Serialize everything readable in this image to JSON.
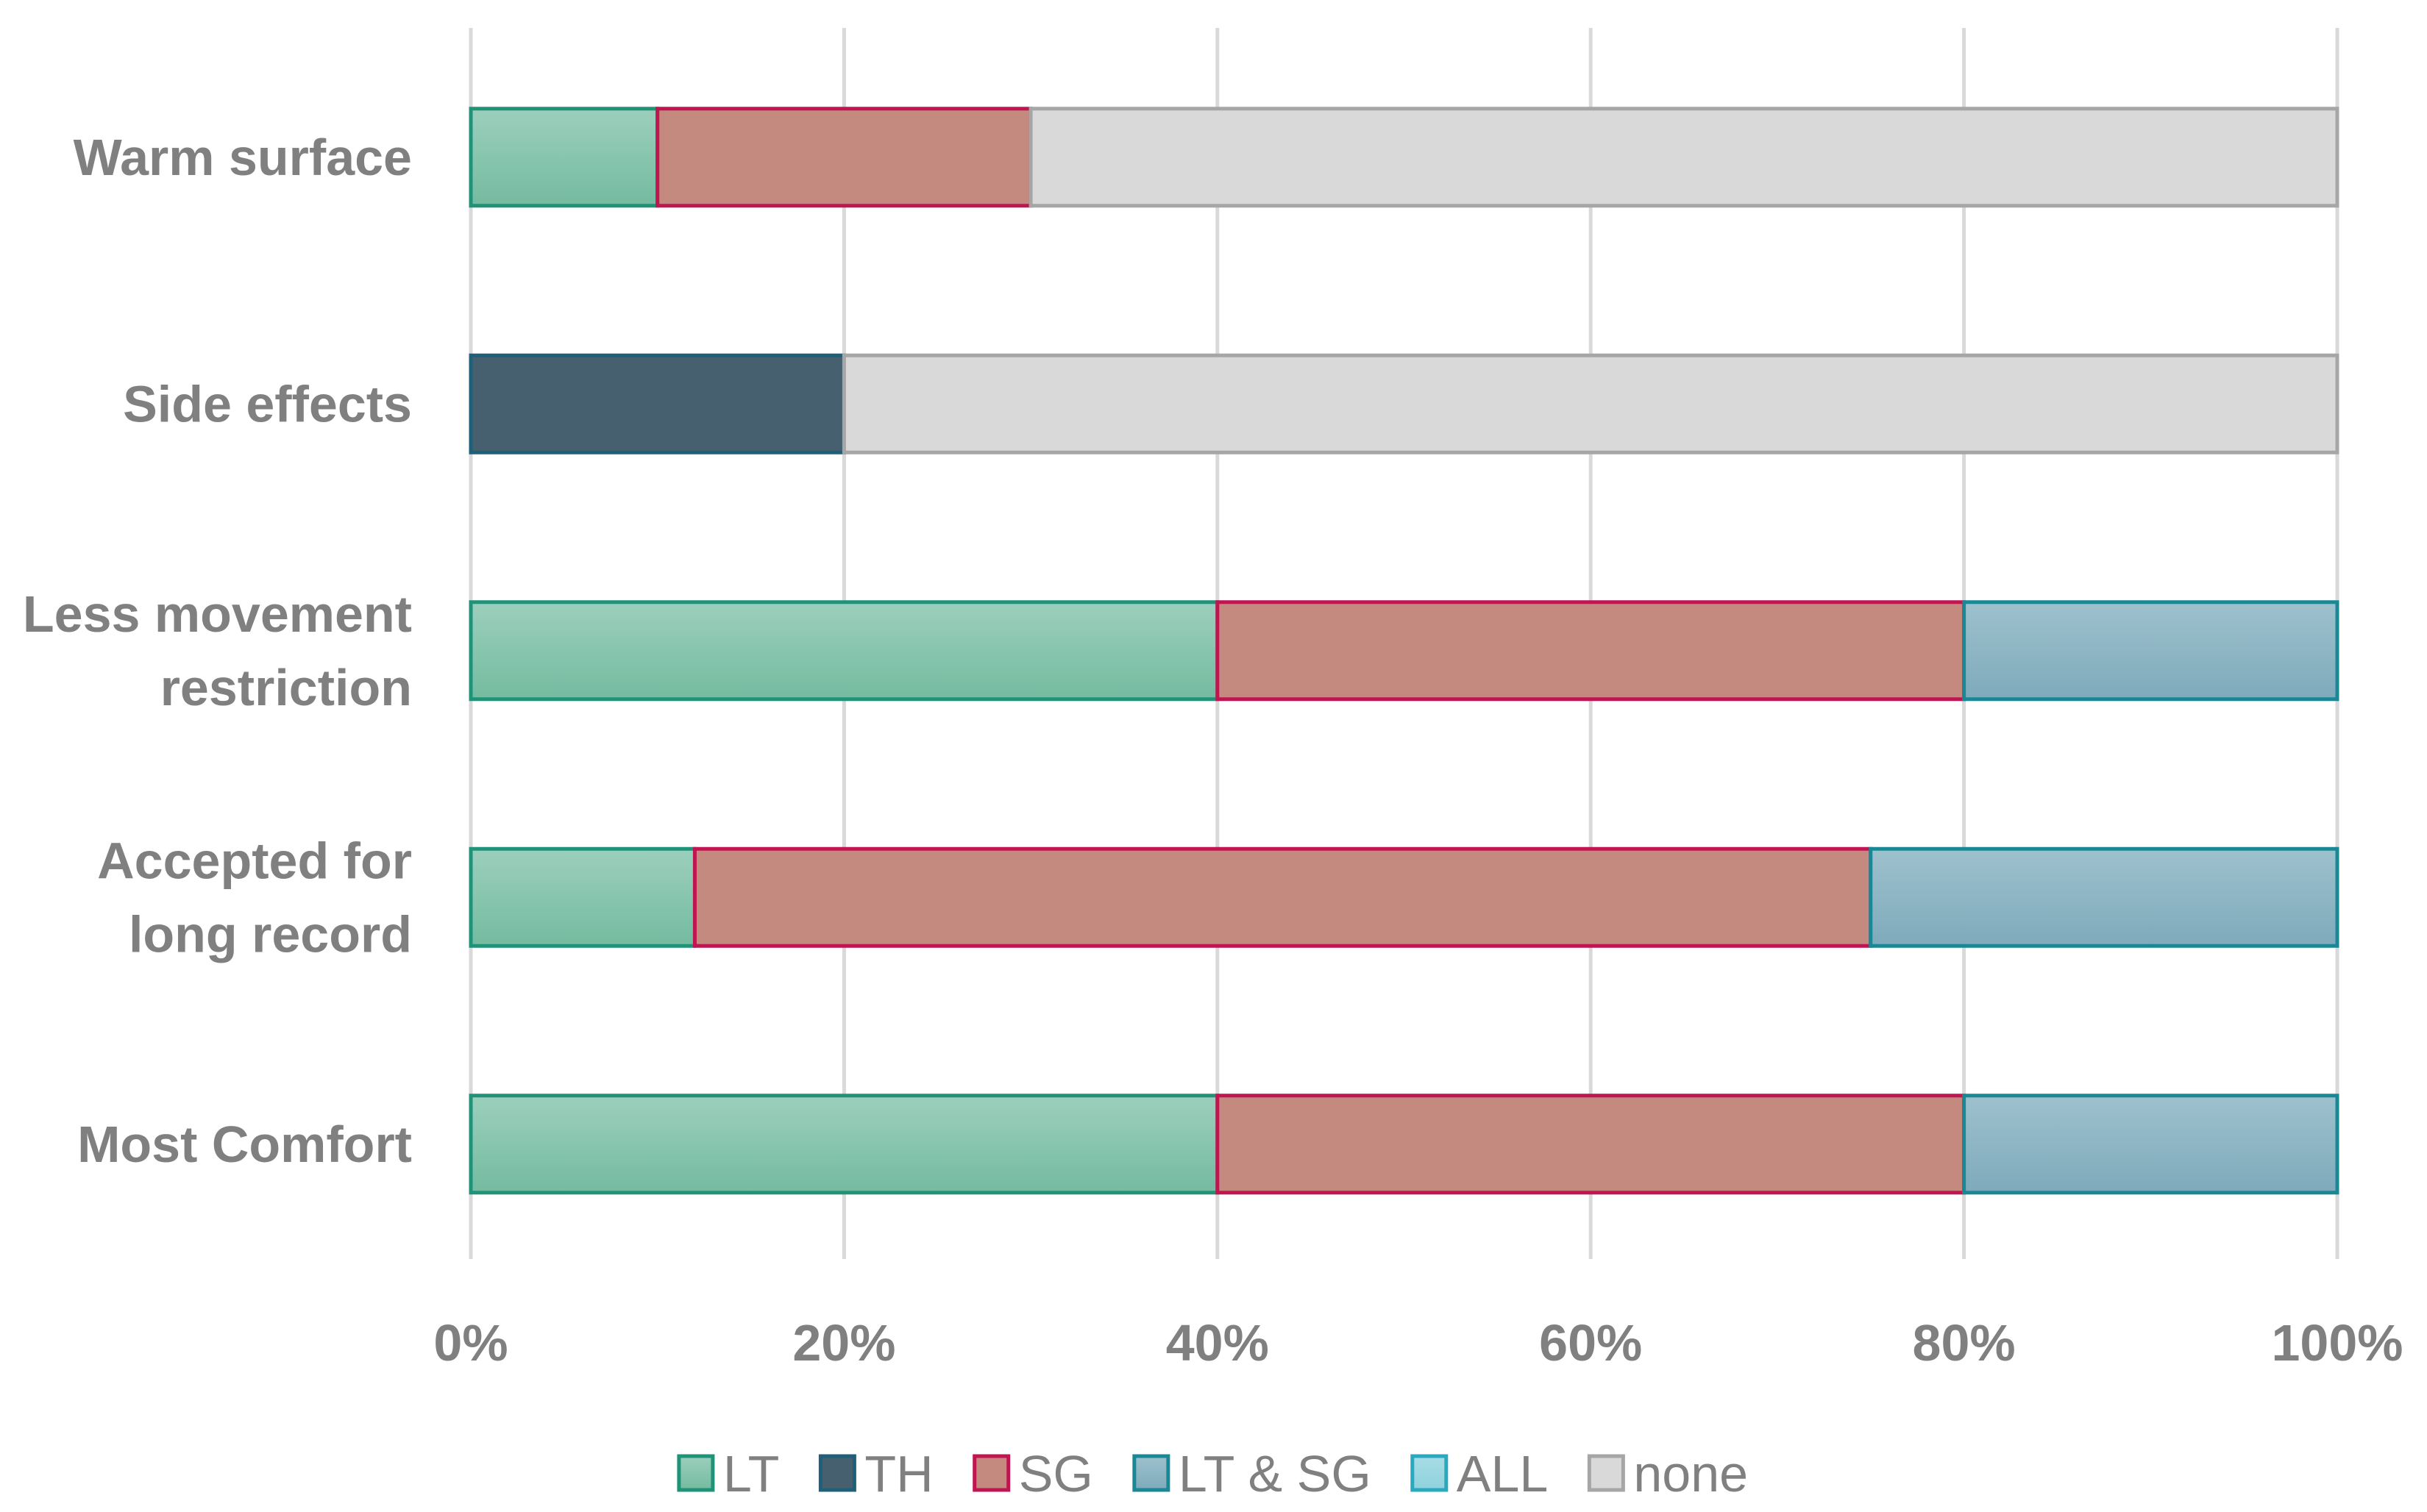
{
  "chart_data": {
    "type": "bar",
    "orientation": "horizontal",
    "stacked": "percent",
    "title": "",
    "xlabel": "",
    "ylabel": "",
    "categories": [
      "Warm surface",
      "Side effects",
      "Less movement restriction",
      "Accepted for long record",
      "Most Comfort"
    ],
    "category_label_lines": [
      [
        "Warm surface"
      ],
      [
        "Side effects"
      ],
      [
        "Less movement",
        "restriction"
      ],
      [
        "Accepted for",
        "long record"
      ],
      [
        "Most Comfort"
      ]
    ],
    "series": [
      {
        "name": "LT",
        "values": [
          10,
          0,
          40,
          12,
          40
        ],
        "fill_top": "#9ccfbd",
        "fill_bottom": "#74bba0",
        "stroke": "#1f9277"
      },
      {
        "name": "TH",
        "values": [
          0,
          20,
          0,
          0,
          0
        ],
        "fill_top": "#46606f",
        "fill_bottom": "#46606f",
        "stroke": "#1f5f7a"
      },
      {
        "name": "SG",
        "values": [
          20,
          0,
          40,
          63,
          40
        ],
        "fill_top": "#c48a80",
        "fill_bottom": "#c48a80",
        "stroke": "#bf1550"
      },
      {
        "name": "LT & SG",
        "values": [
          0,
          0,
          20,
          25,
          20
        ],
        "fill_top": "#9ec1cd",
        "fill_bottom": "#7eaabb",
        "stroke": "#1a8794"
      },
      {
        "name": "ALL",
        "values": [
          0,
          0,
          0,
          0,
          0
        ],
        "fill_top": "#a8dde5",
        "fill_bottom": "#8ed2dd",
        "stroke": "#29a9bd"
      },
      {
        "name": "none",
        "values": [
          70,
          80,
          0,
          0,
          0
        ],
        "fill_top": "#d9d9d9",
        "fill_bottom": "#d9d9d9",
        "stroke": "#a6a6a6"
      }
    ],
    "xlim": [
      0,
      100
    ],
    "x_ticks": [
      0,
      20,
      40,
      60,
      80,
      100
    ],
    "x_tick_labels": [
      "0%",
      "20%",
      "40%",
      "60%",
      "80%",
      "100%"
    ],
    "grid": "vertical",
    "legend": "bottom"
  }
}
